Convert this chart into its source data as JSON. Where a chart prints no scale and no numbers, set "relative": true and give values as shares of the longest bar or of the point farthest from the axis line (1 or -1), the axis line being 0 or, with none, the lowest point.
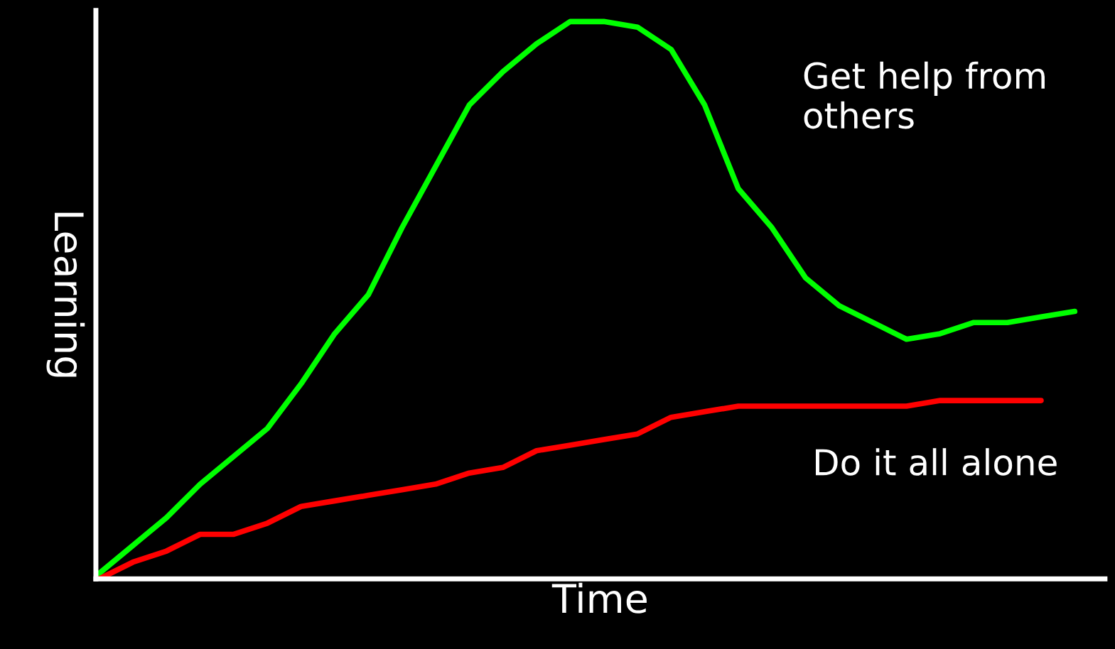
{
  "chart_data": {
    "type": "line",
    "relative": true,
    "xlabel": "Time",
    "ylabel": "Learning",
    "legend": false,
    "categories": [
      null,
      null,
      null,
      null,
      null,
      null,
      null,
      null,
      null,
      null,
      null,
      null,
      null,
      null,
      null,
      null,
      null,
      null,
      null,
      null,
      null,
      null,
      null,
      null,
      null,
      null,
      null,
      null,
      null,
      null
    ],
    "series": [
      {
        "name": "Get help from others",
        "color": "#00ff00",
        "values": [
          0.01,
          0.06,
          0.11,
          0.17,
          0.22,
          0.27,
          0.35,
          0.44,
          0.51,
          0.63,
          0.74,
          0.85,
          0.91,
          0.96,
          1.0,
          1.0,
          0.99,
          0.95,
          0.85,
          0.7,
          0.63,
          0.54,
          0.49,
          0.46,
          0.43,
          0.44,
          0.46,
          0.46,
          0.47,
          0.48
        ]
      },
      {
        "name": "Do it all alone",
        "color": "#ff0000",
        "values": [
          0,
          0.03,
          0.05,
          0.08,
          0.08,
          0.1,
          0.13,
          0.14,
          0.15,
          0.16,
          0.17,
          0.19,
          0.2,
          0.23,
          0.24,
          0.25,
          0.26,
          0.29,
          0.3,
          0.31,
          0.31,
          0.31,
          0.31,
          0.31,
          0.31,
          0.32,
          0.32,
          0.32,
          0.32,
          null
        ]
      }
    ]
  }
}
